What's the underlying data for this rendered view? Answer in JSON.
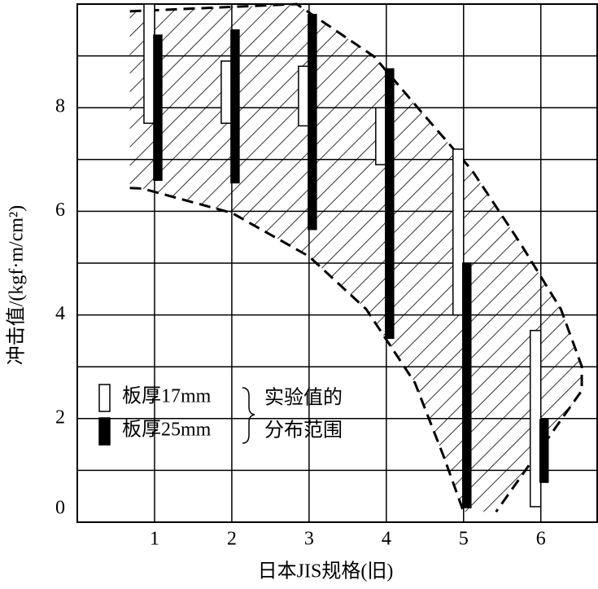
{
  "chart_data": {
    "type": "range-bar",
    "x_label": "日本JIS规格(旧)",
    "y_label": "冲击值/(kgf·m/cm²)",
    "x": [
      1,
      2,
      3,
      4,
      5,
      6
    ],
    "xlim": [
      0,
      6.74
    ],
    "xticks": [
      1,
      2,
      3,
      4,
      5,
      6
    ],
    "ylim": [
      0,
      10
    ],
    "yticks": [
      0,
      2,
      4,
      6,
      8
    ],
    "ygrid_minor": [
      1,
      3,
      5,
      7,
      9
    ],
    "grid": true,
    "series": [
      {
        "name": "板厚17mm",
        "color": "#ffffff",
        "low": [
          7.7,
          7.7,
          7.65,
          6.9,
          4.0,
          0.3
        ],
        "high": [
          10,
          8.9,
          8.8,
          8.0,
          7.2,
          3.7
        ]
      },
      {
        "name": "板厚25mm",
        "color": "#000000",
        "low": [
          6.6,
          6.55,
          5.65,
          3.55,
          0.28,
          0.77
        ],
        "high": [
          9.4,
          9.5,
          9.8,
          8.75,
          5.0,
          1.98
        ]
      }
    ],
    "band": {
      "label": [
        "实验值的",
        "分布范围"
      ],
      "upper": {
        "x": [
          0.68,
          2.84,
          3.84,
          4.47,
          5.11,
          5.74,
          6.26,
          6.53,
          6.53,
          5.42
        ],
        "y": [
          9.86,
          10,
          8.99,
          7.89,
          6.79,
          5.37,
          4.11,
          3.01,
          2.54,
          0.2
        ]
      },
      "lower": {
        "x": [
          0.68,
          0.84,
          2.0,
          3.0,
          3.74,
          4.37,
          4.74,
          5.0
        ],
        "y": [
          6.45,
          6.44,
          5.97,
          5.13,
          4.11,
          2.69,
          1.28,
          0.2
        ]
      }
    }
  }
}
